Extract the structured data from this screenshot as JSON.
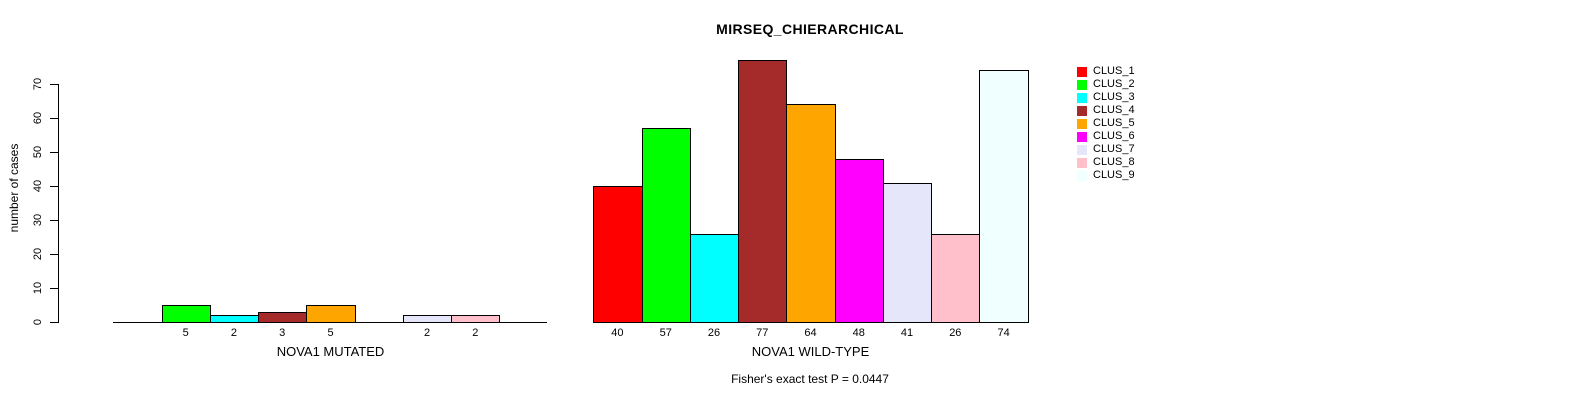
{
  "chart_data": {
    "type": "bar",
    "title": "MIRSEQ_CHIERARCHICAL",
    "ylabel": "number of cases",
    "ylim": [
      0,
      70
    ],
    "yticks": [
      0,
      10,
      20,
      30,
      40,
      50,
      60,
      70
    ],
    "grid": false,
    "categories": [
      "CLUS_1",
      "CLUS_2",
      "CLUS_3",
      "CLUS_4",
      "CLUS_5",
      "CLUS_6",
      "CLUS_7",
      "CLUS_8",
      "CLUS_9"
    ],
    "colors": [
      "#FF0000",
      "#00FF00",
      "#00FFFF",
      "#A52A2A",
      "#FFA500",
      "#FF00FF",
      "#E6E6FA",
      "#FFC0CB",
      "#F0FFFF"
    ],
    "panels": [
      {
        "xlabel": "NOVA1 MUTATED",
        "values": [
          0,
          5,
          2,
          3,
          5,
          0,
          2,
          2,
          0
        ],
        "bar_labels": [
          "",
          "5",
          "2",
          "3",
          "5",
          "",
          "2",
          "2",
          ""
        ]
      },
      {
        "xlabel": "NOVA1 WILD-TYPE",
        "values": [
          40,
          57,
          26,
          77,
          64,
          48,
          41,
          26,
          74
        ],
        "bar_labels": [
          "40",
          "57",
          "26",
          "77",
          "64",
          "48",
          "41",
          "26",
          "74"
        ]
      }
    ],
    "legend": {
      "position": "right",
      "labels": [
        "CLUS_1",
        "CLUS_2",
        "CLUS_3",
        "CLUS_4",
        "CLUS_5",
        "CLUS_6",
        "CLUS_7",
        "CLUS_8",
        "CLUS_9"
      ]
    },
    "footnote": "Fisher's exact test P = 0.0447"
  }
}
